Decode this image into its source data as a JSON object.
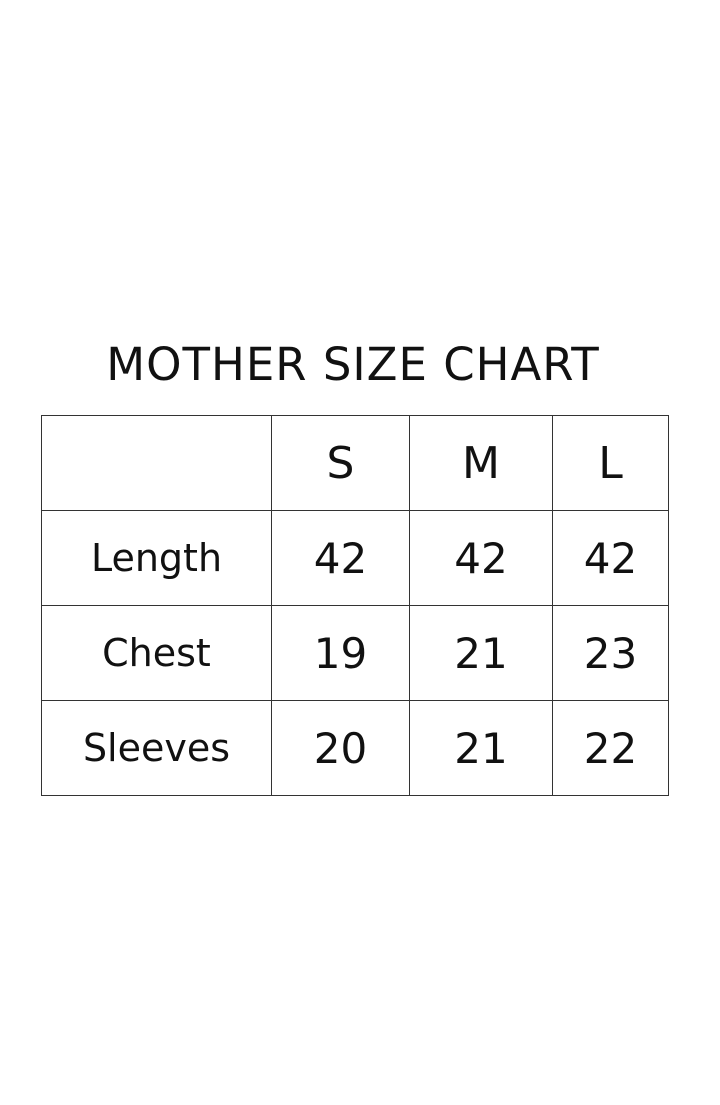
{
  "title": "MOTHER SIZE CHART",
  "table": {
    "headers": [
      "",
      "S",
      "M",
      "L"
    ],
    "rows": [
      {
        "label": "Length",
        "values": [
          "42",
          "42",
          "42"
        ]
      },
      {
        "label": "Chest",
        "values": [
          "19",
          "21",
          "23"
        ]
      },
      {
        "label": "Sleeves",
        "values": [
          "20",
          "21",
          "22"
        ]
      }
    ]
  }
}
